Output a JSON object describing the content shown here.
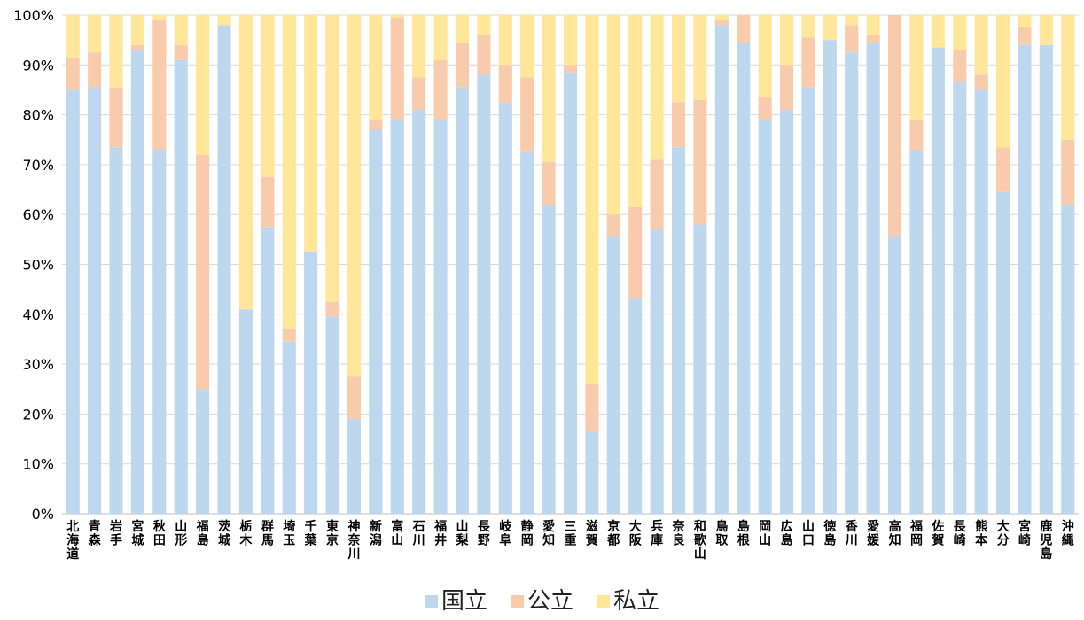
{
  "chart_data": {
    "type": "bar",
    "stacked": true,
    "percent": true,
    "ylim": [
      0,
      100
    ],
    "y_ticks": [
      "0%",
      "10%",
      "20%",
      "30%",
      "40%",
      "50%",
      "60%",
      "70%",
      "80%",
      "90%",
      "100%"
    ],
    "grid": true,
    "legend_position": "bottom",
    "categories": [
      "北海道",
      "青森",
      "岩手",
      "宮城",
      "秋田",
      "山形",
      "福島",
      "茨城",
      "栃木",
      "群馬",
      "埼玉",
      "千葉",
      "東京",
      "神奈川",
      "新潟",
      "富山",
      "石川",
      "福井",
      "山梨",
      "長野",
      "岐阜",
      "静岡",
      "愛知",
      "三重",
      "滋賀",
      "京都",
      "大阪",
      "兵庫",
      "奈良",
      "和歌山",
      "鳥取",
      "島根",
      "岡山",
      "広島",
      "山口",
      "徳島",
      "香川",
      "愛媛",
      "高知",
      "福岡",
      "佐賀",
      "長崎",
      "熊本",
      "大分",
      "宮崎",
      "鹿児島",
      "沖縄"
    ],
    "series": [
      {
        "name": "国立",
        "color": "#bdd7ee",
        "values": [
          85,
          85.5,
          73.5,
          93,
          73,
          91,
          25,
          98,
          41,
          57.5,
          34.5,
          52.5,
          39.5,
          19,
          77,
          79,
          81,
          79,
          85.5,
          88,
          82.5,
          72.5,
          62,
          88.5,
          16.5,
          55.5,
          43,
          57,
          73.5,
          58,
          98,
          94.5,
          79,
          81,
          85.5,
          95,
          92.5,
          94.5,
          55.5,
          73,
          93.5,
          86.5,
          85,
          64.5,
          94,
          94,
          62
        ]
      },
      {
        "name": "公立",
        "color": "#f8cbad",
        "values": [
          6.5,
          7,
          12,
          1,
          26,
          3,
          47,
          0,
          0,
          10,
          2.5,
          0,
          3,
          8.5,
          2,
          20.5,
          6.5,
          12,
          9,
          8,
          7.5,
          15,
          8.5,
          1.5,
          9.5,
          4.5,
          18.5,
          14,
          9,
          25,
          1,
          5.5,
          4.5,
          9,
          10,
          0,
          5.5,
          1.5,
          44.5,
          6,
          0,
          6.5,
          3,
          9,
          3.5,
          0,
          13
        ]
      },
      {
        "name": "私立",
        "color": "#ffe699",
        "values": [
          8.5,
          7.5,
          14.5,
          6,
          1,
          6,
          28,
          2,
          59,
          32.5,
          63,
          47.5,
          57.5,
          72.5,
          21,
          0.5,
          12.5,
          9,
          5.5,
          4,
          10,
          12.5,
          29.5,
          10,
          74,
          40,
          38.5,
          29,
          17.5,
          17,
          1,
          0,
          16.5,
          10,
          4.5,
          5,
          2,
          4,
          0,
          21,
          6.5,
          7,
          12,
          26.5,
          2.5,
          6,
          25
        ]
      }
    ]
  }
}
